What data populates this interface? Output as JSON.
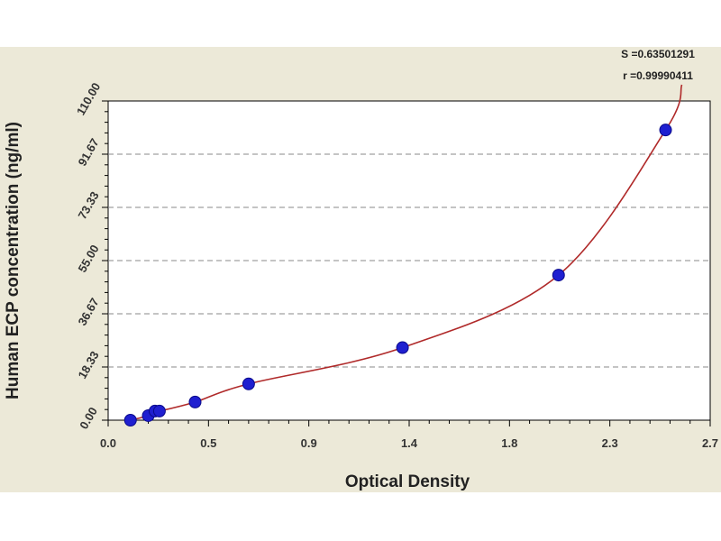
{
  "chart_data": {
    "type": "scatter",
    "xlabel": "Optical Density",
    "ylabel": "Human ECP concentration (ng/ml)",
    "xlim": [
      0.0,
      2.7
    ],
    "ylim": [
      0.0,
      110.0
    ],
    "x_ticks": [
      "0.0",
      "0.5",
      "0.9",
      "1.4",
      "1.8",
      "2.3",
      "2.7"
    ],
    "y_ticks": [
      "0.00",
      "18.33",
      "36.67",
      "55.00",
      "73.33",
      "91.67",
      "110.00"
    ],
    "grid": "horizontal dashed",
    "annotations": [
      "S =0.63501291",
      "r =0.99990411"
    ],
    "series": [
      {
        "values": [
          {
            "x": 0.1,
            "y": 0.0
          },
          {
            "x": 0.18,
            "y": 1.56
          },
          {
            "x": 0.21,
            "y": 3.13
          },
          {
            "x": 0.23,
            "y": 3.13
          },
          {
            "x": 0.39,
            "y": 6.25
          },
          {
            "x": 0.63,
            "y": 12.5
          },
          {
            "x": 1.32,
            "y": 25.0
          },
          {
            "x": 2.02,
            "y": 50.0
          },
          {
            "x": 2.5,
            "y": 100.0
          }
        ]
      }
    ],
    "colors": {
      "background": "#ece9d8",
      "plot_area": "#ffffff",
      "points": "#1f1fd0",
      "curve": "#b02a2a",
      "grid": "#8a8a8a"
    }
  }
}
